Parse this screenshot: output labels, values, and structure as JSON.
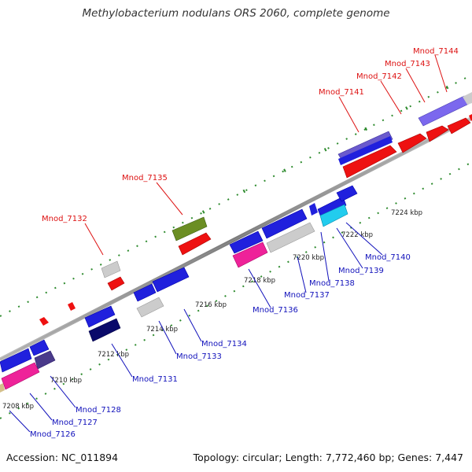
{
  "title": "Methylobacterium nodulans ORS 2060, complete genome",
  "accession": "Accession: NC_011894",
  "topology": "Topology: circular; Length: 7,772,460 bp; Genes: 7,447",
  "colors": {
    "backbone": "#888888",
    "dots": "#2e8b2e",
    "red_label": "#dd1111",
    "blue_label": "#1111bb"
  },
  "scale_labels": [
    "7208 kbp",
    "7210 kbp",
    "7212 kbp",
    "7214 kbp",
    "7216 kbp",
    "7218 kbp",
    "7220 kbp",
    "7222 kbp",
    "7224 kbp"
  ],
  "red_labels": [
    "Mnod_7132",
    "Mnod_7135",
    "Mnod_7141",
    "Mnod_7142",
    "Mnod_7143",
    "Mnod_7144"
  ],
  "blue_labels": [
    "Mnod_7126",
    "Mnod_7127",
    "Mnod_7128",
    "Mnod_7131",
    "Mnod_7133",
    "Mnod_7134",
    "Mnod_7136",
    "Mnod_7137",
    "Mnod_7138",
    "Mnod_7139",
    "Mnod_7140"
  ]
}
